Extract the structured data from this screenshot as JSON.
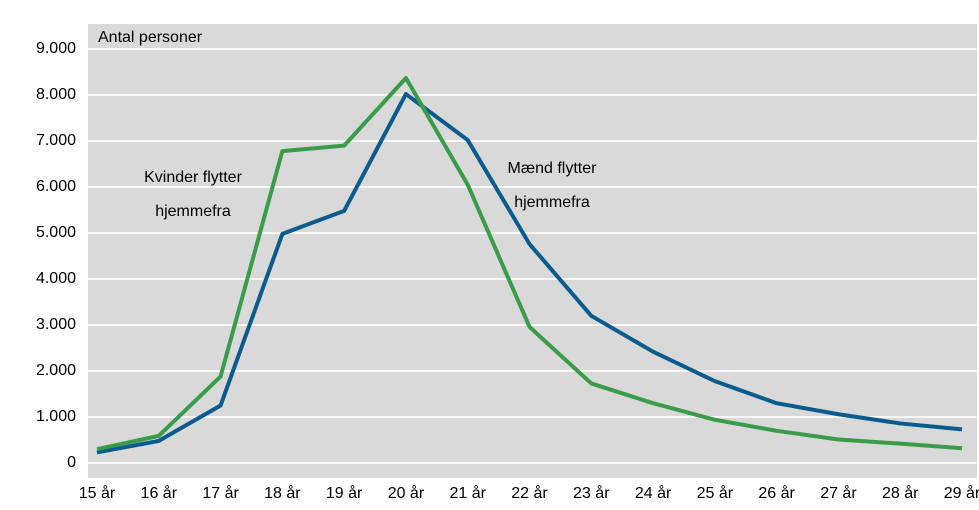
{
  "chart_data": {
    "type": "line",
    "y_label": "Antal personer",
    "categories": [
      "15 år",
      "16 år",
      "17 år",
      "18 år",
      "19 år",
      "20 år",
      "21 år",
      "22 år",
      "23 år",
      "24 år",
      "25 år",
      "26 år",
      "27 år",
      "28 år",
      "29 år"
    ],
    "series": [
      {
        "color": "#0b5b8e",
        "values": [
          230,
          480,
          1250,
          4980,
          5480,
          8020,
          7020,
          4760,
          3200,
          2420,
          1780,
          1300,
          1060,
          860,
          730
        ]
      },
      {
        "color": "#3a9b48",
        "values": [
          300,
          590,
          1880,
          6780,
          6900,
          8370,
          6050,
          2960,
          1730,
          1300,
          940,
          700,
          510,
          420,
          320
        ]
      }
    ],
    "annotations": [
      [
        "Kvinder flytter",
        "hjemmefra"
      ],
      [
        "Mænd flytter",
        "hjemmefra"
      ]
    ],
    "ylim": [
      0,
      9000
    ],
    "yticks": [
      {
        "value": 0,
        "label": "0"
      },
      {
        "value": 1000,
        "label": "1.000"
      },
      {
        "value": 2000,
        "label": "2.000"
      },
      {
        "value": 3000,
        "label": "3.000"
      },
      {
        "value": 4000,
        "label": "4.000"
      },
      {
        "value": 5000,
        "label": "5.000"
      },
      {
        "value": 6000,
        "label": "6.000"
      },
      {
        "value": 7000,
        "label": "7.000"
      },
      {
        "value": 8000,
        "label": "8.000"
      },
      {
        "value": 9000,
        "label": "9.000"
      }
    ],
    "grid": true
  }
}
